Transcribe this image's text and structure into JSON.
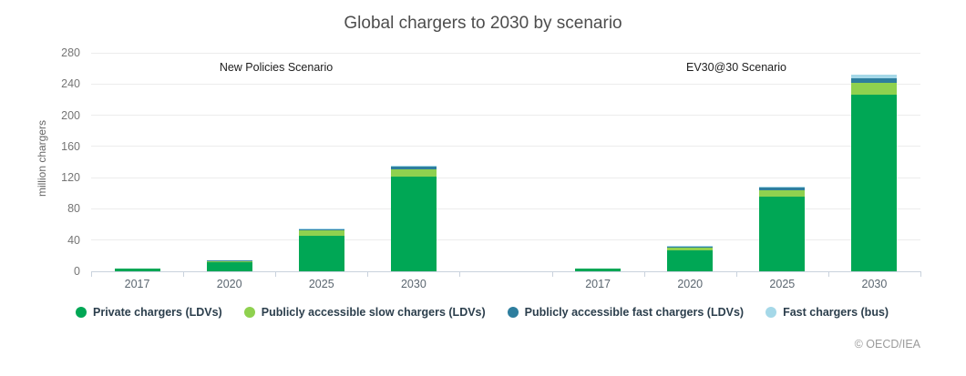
{
  "title": "Global chargers to 2030 by scenario",
  "y_axis": {
    "label": "million chargers"
  },
  "footer": {
    "copyright": "© OECD/IEA"
  },
  "chart_data": {
    "type": "bar",
    "stacked": true,
    "title": "Global chargers to 2030 by scenario",
    "ylabel": "million chargers",
    "ylim": [
      0,
      280
    ],
    "yticks": [
      0,
      40,
      80,
      120,
      160,
      200,
      240,
      280
    ],
    "grid": true,
    "legend_position": "bottom",
    "groups": [
      {
        "name": "New Policies Scenario",
        "categories": [
          "2017",
          "2020",
          "2025",
          "2030"
        ]
      },
      {
        "name": "EV30@30 Scenario",
        "categories": [
          "2017",
          "2020",
          "2025",
          "2030"
        ]
      }
    ],
    "series": [
      {
        "name": "Private chargers (LDVs)",
        "color": "#00a755",
        "values": [
          4,
          12,
          46,
          121,
          4,
          27,
          96,
          226
        ]
      },
      {
        "name": "Publicly accessible slow chargers (LDVs)",
        "color": "#8fd14f",
        "values": [
          0,
          2,
          6,
          10,
          0,
          3,
          8,
          16
        ]
      },
      {
        "name": "Publicly accessible fast chargers (LDVs)",
        "color": "#2e7e9e",
        "values": [
          0,
          0.3,
          2,
          3.5,
          0,
          2,
          3,
          5
        ]
      },
      {
        "name": "Fast chargers (bus)",
        "color": "#a5d8e8",
        "values": [
          0,
          0,
          0.5,
          1,
          0,
          0.3,
          1,
          5
        ]
      }
    ]
  }
}
